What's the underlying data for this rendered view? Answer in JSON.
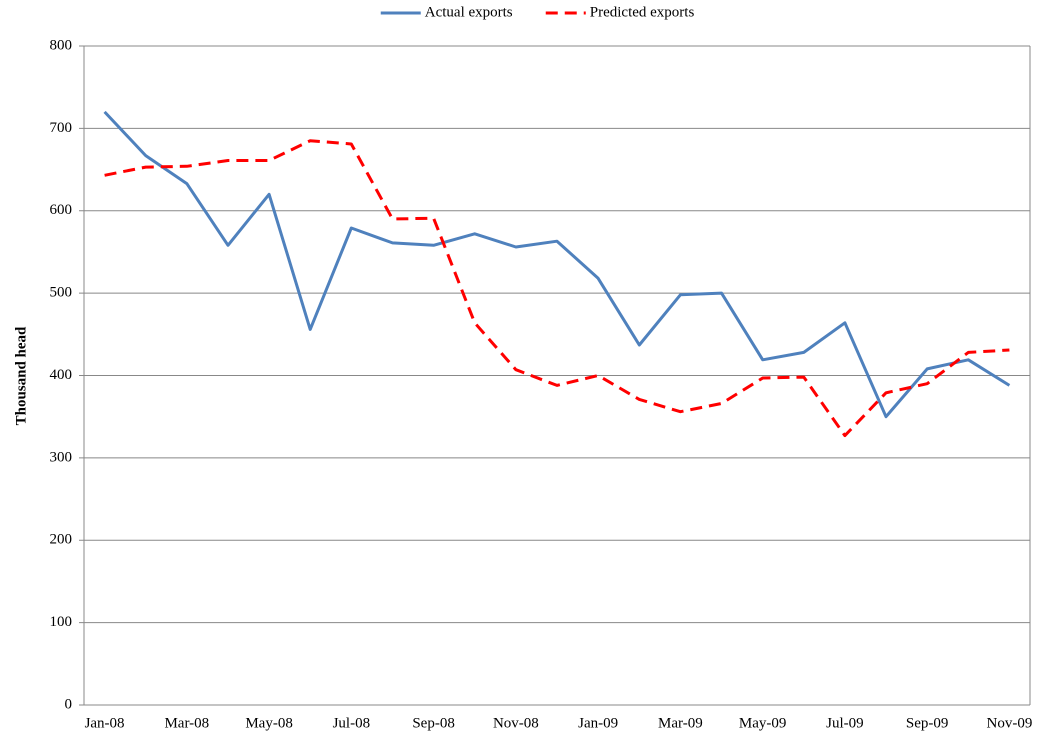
{
  "chart_data": {
    "type": "line",
    "y_label": "Thousand head",
    "categories": [
      "Jan-08",
      null,
      "Mar-08",
      null,
      "May-08",
      null,
      "Jul-08",
      null,
      "Sep-08",
      null,
      "Nov-08",
      null,
      "Jan-09",
      null,
      "Mar-09",
      null,
      "May-09",
      null,
      "Jul-09",
      null,
      "Sep-09",
      null,
      "Nov-09"
    ],
    "series": [
      {
        "name": "Actual exports",
        "color": "#4f81bd",
        "dash": "solid",
        "values": [
          720,
          667,
          633,
          558,
          620,
          456,
          579,
          561,
          558,
          572,
          556,
          563,
          518,
          437,
          498,
          500,
          419,
          428,
          464,
          350,
          408,
          419,
          388
        ]
      },
      {
        "name": "Predicted exports",
        "color": "#ff0000",
        "dash": "dashed",
        "values": [
          643,
          653,
          654,
          661,
          661,
          685,
          681,
          590,
          591,
          464,
          407,
          388,
          400,
          371,
          356,
          366,
          397,
          398,
          327,
          379,
          390,
          428,
          431
        ]
      }
    ],
    "ylim": [
      0,
      800
    ],
    "yticks": [
      0,
      100,
      200,
      300,
      400,
      500,
      600,
      700,
      800
    ],
    "grid": true,
    "legend": "top"
  }
}
